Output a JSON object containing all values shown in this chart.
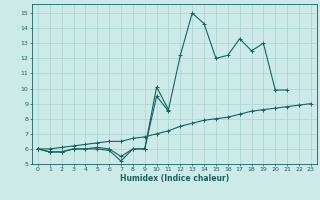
{
  "xlabel": "Humidex (Indice chaleur)",
  "bg_color": "#cceae8",
  "grid_color": "#aad4d0",
  "line_color": "#1a6060",
  "xlim": [
    -0.5,
    23.5
  ],
  "ylim": [
    5,
    15.6
  ],
  "yticks": [
    5,
    6,
    7,
    8,
    9,
    10,
    11,
    12,
    13,
    14,
    15
  ],
  "xticks": [
    0,
    1,
    2,
    3,
    4,
    5,
    6,
    7,
    8,
    9,
    10,
    11,
    12,
    13,
    14,
    15,
    16,
    17,
    18,
    19,
    20,
    21,
    22,
    23
  ],
  "x": [
    0,
    1,
    2,
    3,
    4,
    5,
    6,
    7,
    8,
    9,
    10,
    11,
    12,
    13,
    14,
    15,
    16,
    17,
    18,
    19,
    20,
    21,
    22,
    23
  ],
  "line1": [
    6.0,
    5.8,
    5.8,
    6.0,
    6.0,
    6.0,
    5.9,
    5.2,
    6.0,
    6.0,
    10.1,
    8.6,
    12.2,
    15.0,
    14.3,
    12.0,
    12.2,
    13.3,
    12.5,
    13.0,
    9.9,
    9.9,
    null,
    null
  ],
  "line2": [
    6.0,
    5.8,
    5.8,
    6.0,
    6.0,
    6.1,
    6.0,
    5.5,
    6.0,
    6.0,
    9.5,
    8.5,
    null,
    null,
    null,
    null,
    null,
    null,
    null,
    null,
    null,
    null,
    null,
    null
  ],
  "line3": [
    6.0,
    6.0,
    6.1,
    6.2,
    6.3,
    6.4,
    6.5,
    6.5,
    6.7,
    6.8,
    7.0,
    7.2,
    7.5,
    7.7,
    7.9,
    8.0,
    8.1,
    8.3,
    8.5,
    8.6,
    8.7,
    8.8,
    8.9,
    9.0
  ]
}
